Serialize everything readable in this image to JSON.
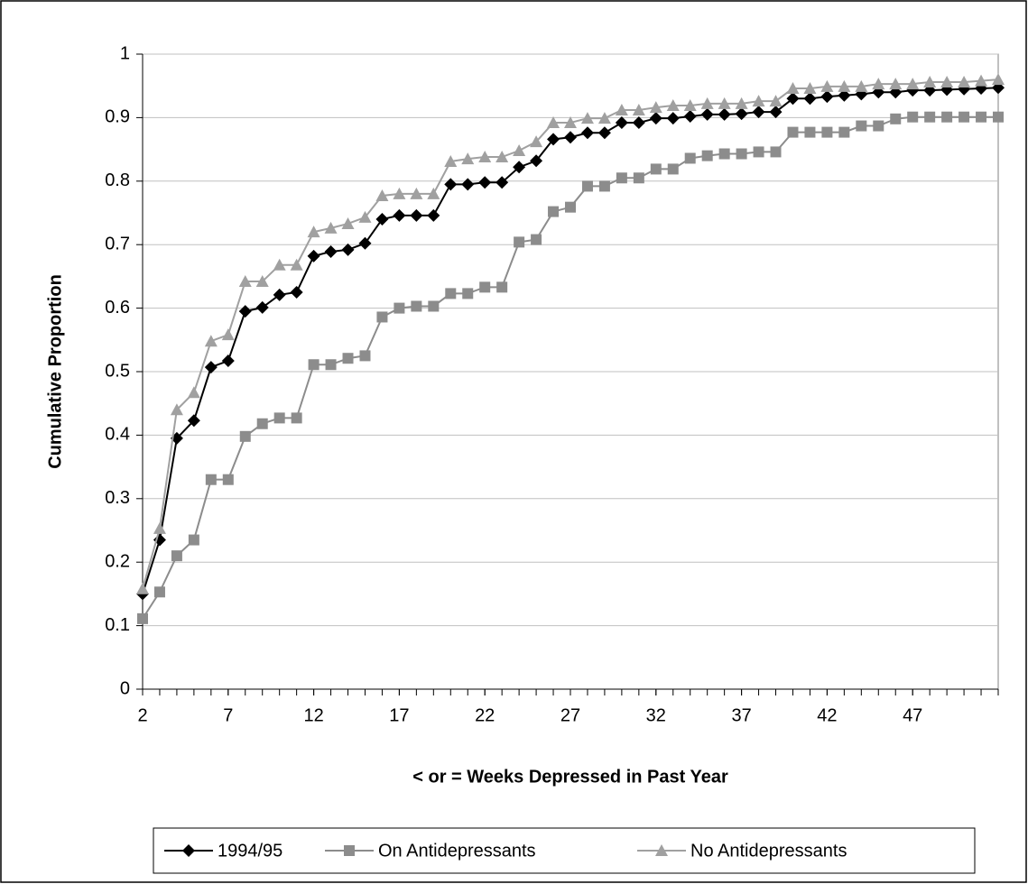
{
  "chart_data": {
    "type": "line",
    "x_label": "< or = Weeks Depressed in Past Year",
    "y_label": "Cumulative Proportion",
    "x": [
      2,
      3,
      4,
      5,
      6,
      7,
      8,
      9,
      10,
      11,
      12,
      13,
      14,
      15,
      16,
      17,
      18,
      19,
      20,
      21,
      22,
      23,
      24,
      25,
      26,
      27,
      28,
      29,
      30,
      31,
      32,
      33,
      34,
      35,
      36,
      37,
      38,
      39,
      40,
      41,
      42,
      43,
      44,
      45,
      46,
      47,
      48,
      49,
      50,
      51,
      52
    ],
    "xlim": [
      2,
      52
    ],
    "xticks": [
      2,
      7,
      12,
      17,
      22,
      27,
      32,
      37,
      42,
      47
    ],
    "ylim": [
      0,
      1
    ],
    "yticks": [
      0,
      0.1,
      0.2,
      0.3,
      0.4,
      0.5,
      0.6,
      0.7,
      0.8,
      0.9,
      1
    ],
    "grid": true,
    "legend": "bottom",
    "series": [
      {
        "name": "1994/95",
        "color": "#000000",
        "marker": "diamond",
        "values": [
          0.15,
          0.235,
          0.395,
          0.423,
          0.507,
          0.517,
          0.595,
          0.601,
          0.621,
          0.625,
          0.682,
          0.689,
          0.692,
          0.702,
          0.74,
          0.746,
          0.746,
          0.746,
          0.795,
          0.795,
          0.798,
          0.798,
          0.822,
          0.832,
          0.866,
          0.869,
          0.876,
          0.876,
          0.892,
          0.892,
          0.899,
          0.899,
          0.902,
          0.905,
          0.905,
          0.906,
          0.909,
          0.909,
          0.93,
          0.93,
          0.933,
          0.935,
          0.937,
          0.94,
          0.94,
          0.943,
          0.943,
          0.944,
          0.945,
          0.946,
          0.947
        ]
      },
      {
        "name": "On Antidepressants",
        "color": "#8c8c8c",
        "marker": "square",
        "values": [
          0.111,
          0.153,
          0.21,
          0.235,
          0.33,
          0.33,
          0.398,
          0.418,
          0.427,
          0.427,
          0.511,
          0.511,
          0.521,
          0.525,
          0.586,
          0.6,
          0.603,
          0.603,
          0.623,
          0.623,
          0.633,
          0.633,
          0.704,
          0.708,
          0.752,
          0.759,
          0.792,
          0.792,
          0.805,
          0.805,
          0.819,
          0.819,
          0.836,
          0.84,
          0.843,
          0.843,
          0.846,
          0.846,
          0.877,
          0.877,
          0.877,
          0.877,
          0.887,
          0.887,
          0.898,
          0.901,
          0.901,
          0.901,
          0.901,
          0.901,
          0.901
        ]
      },
      {
        "name": "No Antidepressants",
        "color": "#a0a0a0",
        "marker": "triangle",
        "values": [
          0.158,
          0.253,
          0.44,
          0.467,
          0.548,
          0.558,
          0.642,
          0.642,
          0.668,
          0.668,
          0.72,
          0.726,
          0.733,
          0.743,
          0.777,
          0.78,
          0.78,
          0.78,
          0.831,
          0.835,
          0.838,
          0.838,
          0.848,
          0.862,
          0.892,
          0.892,
          0.899,
          0.899,
          0.912,
          0.912,
          0.916,
          0.919,
          0.919,
          0.922,
          0.922,
          0.922,
          0.926,
          0.926,
          0.946,
          0.946,
          0.949,
          0.949,
          0.949,
          0.953,
          0.953,
          0.953,
          0.956,
          0.956,
          0.956,
          0.958,
          0.96
        ]
      }
    ]
  }
}
